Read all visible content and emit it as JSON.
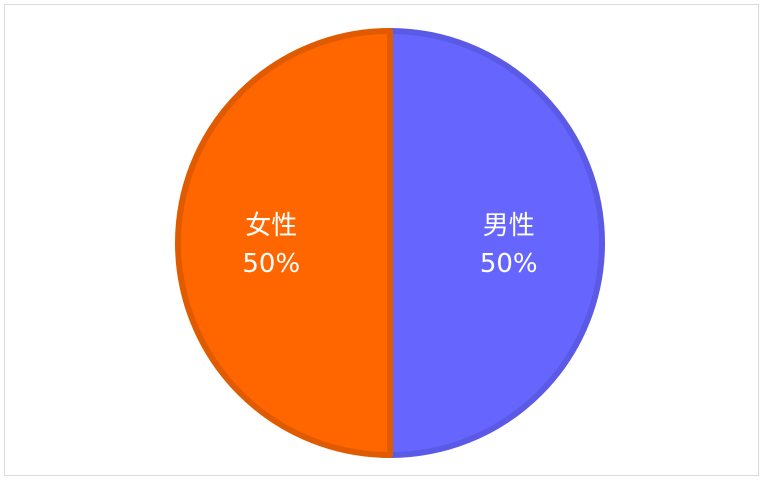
{
  "chart_data": {
    "type": "pie",
    "title": "",
    "series": [
      {
        "name": "",
        "slices": [
          {
            "label": "男性",
            "value": 50,
            "percent_label": "50%",
            "color": "#6666ff",
            "edge_color": "#5a5ae6"
          },
          {
            "label": "女性",
            "value": 50,
            "percent_label": "50%",
            "color": "#ff6600",
            "edge_color": "#e05a00"
          }
        ]
      }
    ],
    "start_angle_deg": 0,
    "direction": "clockwise",
    "legend": "none"
  }
}
